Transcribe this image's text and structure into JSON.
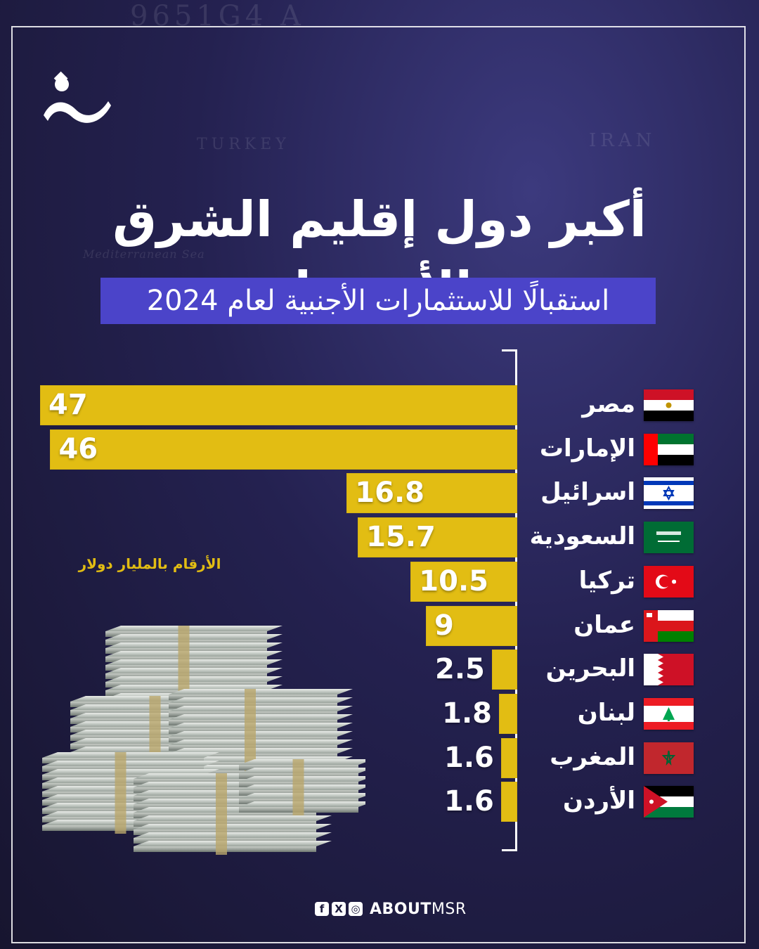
{
  "header": {
    "title": "أكبر دول إقليم الشرق الأوسط",
    "subtitle": "استقبالًا للاستثمارات الأجنبية لعام 2024"
  },
  "background_text": [
    "9651G4 A",
    "IRAN",
    "TURKEY",
    "Mediterranean Sea"
  ],
  "unit_note": "الأرقام بالمليار دولار",
  "colors": {
    "bar": "#e2bd13",
    "subtitle_bg": "#4b44c9",
    "background": "#242150"
  },
  "chart_data": {
    "type": "bar",
    "orientation": "horizontal",
    "title": "أكبر دول إقليم الشرق الأوسط",
    "subtitle": "استقبالًا للاستثمارات الأجنبية لعام 2024",
    "categories": [
      "مصر",
      "الإمارات",
      "اسرائيل",
      "السعودية",
      "تركيا",
      "عمان",
      "البحرين",
      "لبنان",
      "المغرب",
      "الأردن"
    ],
    "values": [
      47,
      46,
      16.8,
      15.7,
      10.5,
      9,
      2.5,
      1.8,
      1.6,
      1.6
    ],
    "labels": [
      "47",
      "46",
      "16.8",
      "15.7",
      "10.5",
      "9",
      "2.5",
      "1.8",
      "1.6",
      "1.6"
    ],
    "flags": [
      "egypt-flag-icon",
      "uae-flag-icon",
      "israel-flag-icon",
      "saudi-flag-icon",
      "turkey-flag-icon",
      "oman-flag-icon",
      "bahrain-flag-icon",
      "lebanon-flag-icon",
      "morocco-flag-icon",
      "jordan-flag-icon"
    ],
    "unit": "الأرقام بالمليار دولار",
    "xlim": [
      0,
      47
    ],
    "grid": false,
    "legend": "none"
  },
  "footer": {
    "icons": [
      "facebook-icon",
      "x-icon",
      "instagram-icon"
    ],
    "brand_bold": "ABOUT",
    "brand_light": "MSR"
  }
}
